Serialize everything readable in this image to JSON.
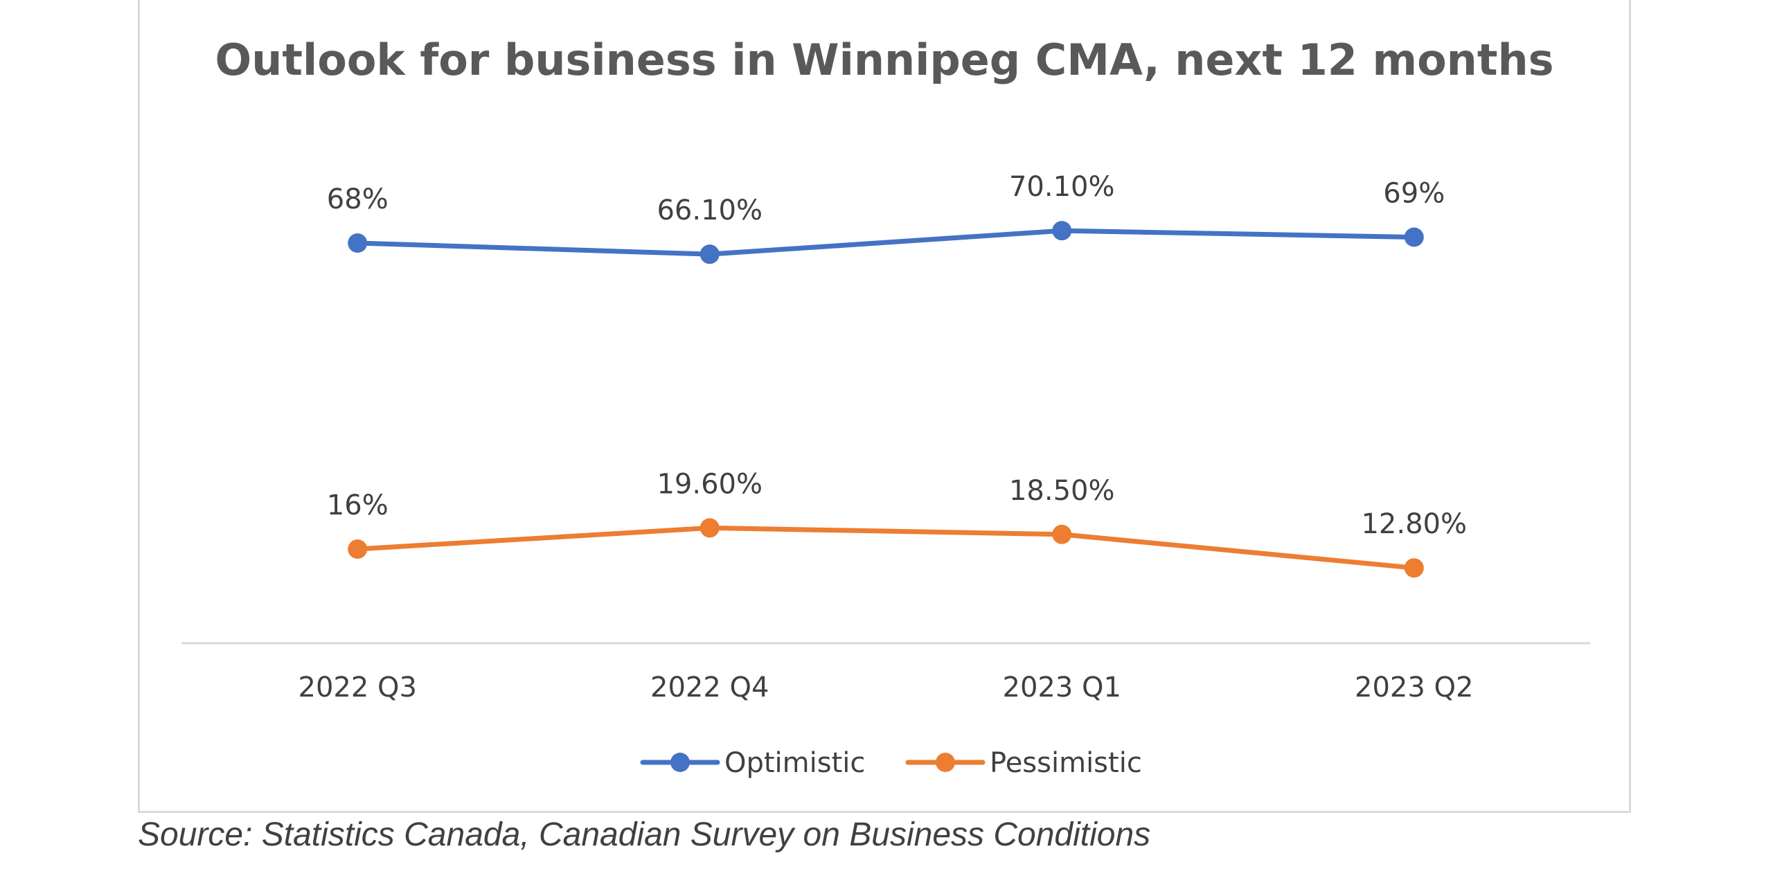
{
  "chart_data": {
    "type": "line",
    "title": "Outlook for business in Winnipeg CMA, next 12 months",
    "categories": [
      "2022 Q3",
      "2022 Q4",
      "2023 Q1",
      "2023 Q2"
    ],
    "series": [
      {
        "name": "Optimistic",
        "values": [
          68,
          66.1,
          70.1,
          69
        ],
        "labels": [
          "68%",
          "66.10%",
          "70.10%",
          "69%"
        ],
        "color": "#4472c4"
      },
      {
        "name": "Pessimistic",
        "values": [
          16,
          19.6,
          18.5,
          12.8
        ],
        "labels": [
          "16%",
          "19.60%",
          "18.50%",
          "12.80%"
        ],
        "color": "#ed7d31"
      }
    ],
    "ylim": [
      0,
      80
    ],
    "grid": false,
    "legend_position": "bottom",
    "colors": {
      "axis": "#d9d9d9",
      "title": "#595959",
      "text": "#404040"
    }
  },
  "source": "Source: Statistics Canada, Canadian Survey on Business Conditions"
}
